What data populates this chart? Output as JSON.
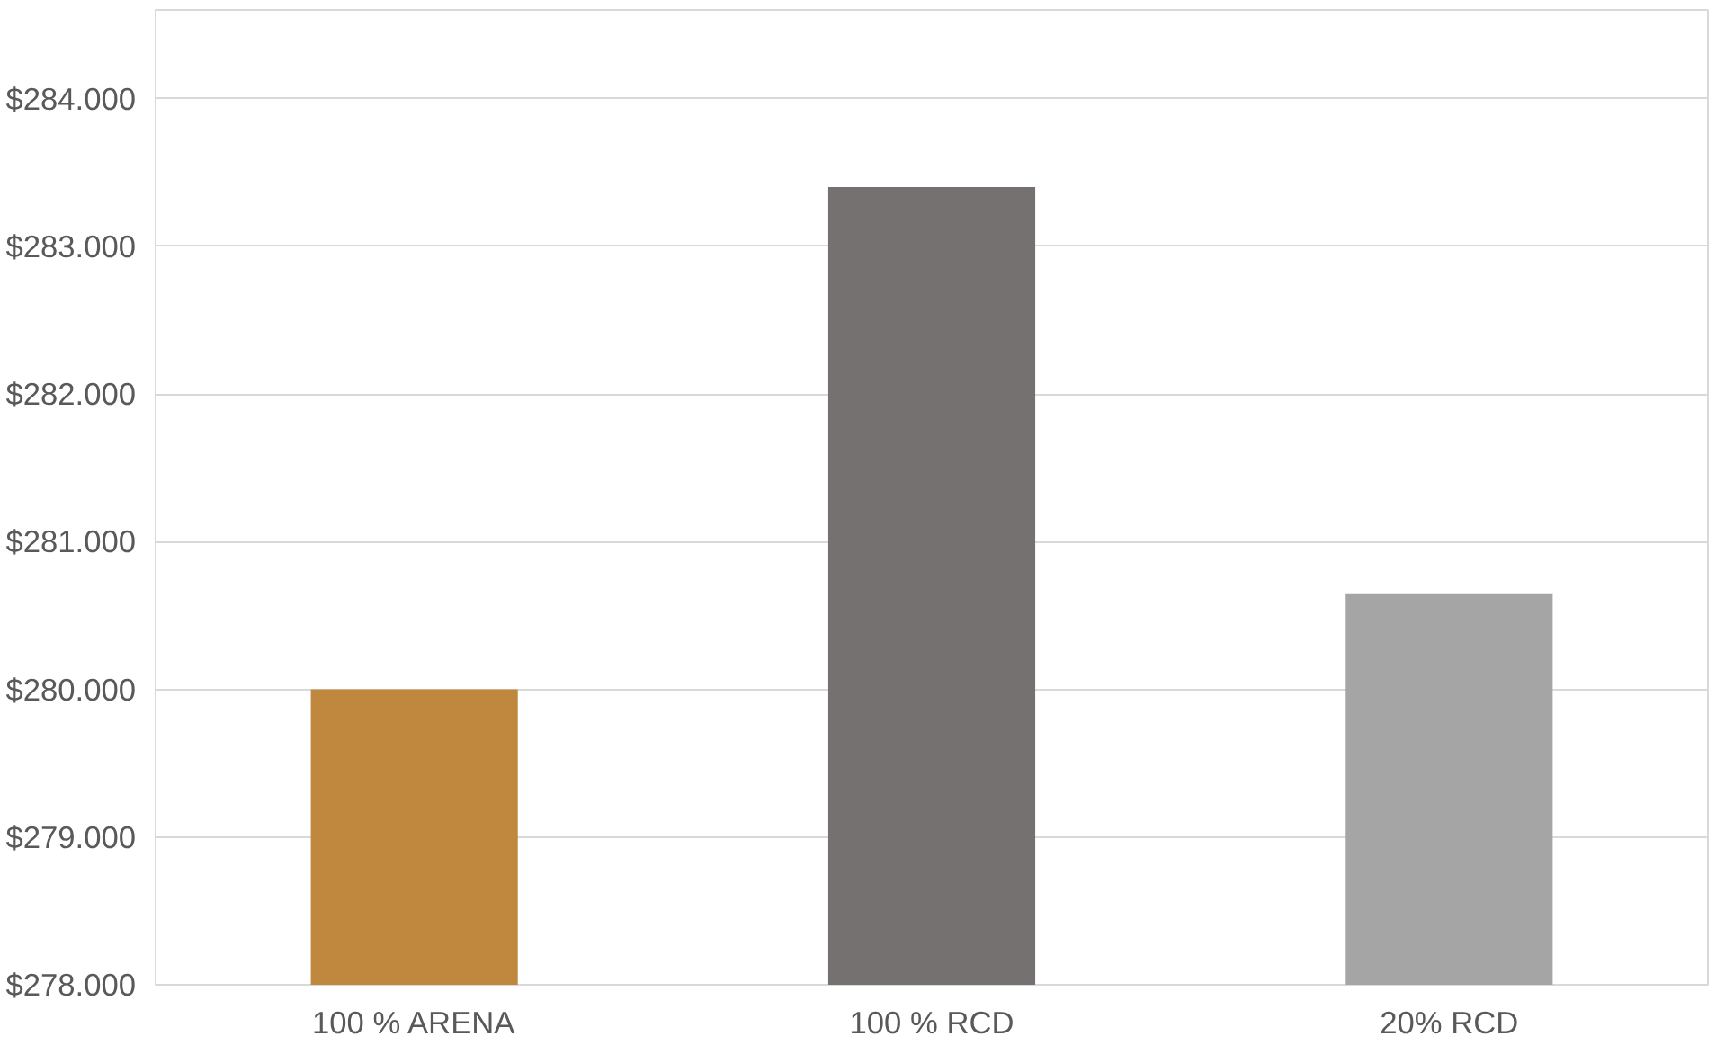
{
  "chart_data": {
    "type": "bar",
    "categories": [
      "100 % ARENA",
      "100 % RCD",
      "20% RCD"
    ],
    "values": [
      280000,
      283400,
      280650
    ],
    "colors": [
      "#c0873f",
      "#757170",
      "#a5a5a5"
    ],
    "ylim": [
      278000,
      284600
    ],
    "yticks": [
      {
        "value": 278000,
        "label": "$278.000"
      },
      {
        "value": 279000,
        "label": "$279.000"
      },
      {
        "value": 280000,
        "label": "$280.000"
      },
      {
        "value": 281000,
        "label": "$281.000"
      },
      {
        "value": 282000,
        "label": "$282.000"
      },
      {
        "value": 283000,
        "label": "$283.000"
      },
      {
        "value": 284000,
        "label": "$284.000"
      }
    ],
    "grid": "y"
  }
}
